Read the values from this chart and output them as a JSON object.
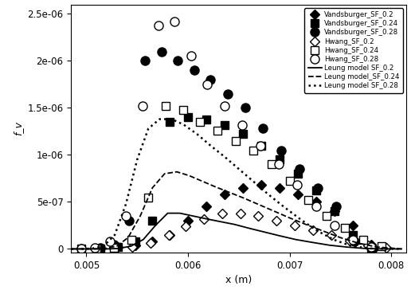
{
  "title": "",
  "xlabel": "x (m)",
  "ylabel": "f_v",
  "xlim": [
    0.00485,
    0.00815
  ],
  "ylim": [
    -4e-08,
    2.6e-06
  ],
  "yticks": [
    0,
    5e-07,
    1e-06,
    1.5e-06,
    2e-06,
    2.5e-06
  ],
  "xticks": [
    0.005,
    0.006,
    0.007,
    0.008
  ],
  "vands_02_x": [
    0.00514,
    0.00531,
    0.00548,
    0.00565,
    0.00582,
    0.006,
    0.00618,
    0.00636,
    0.00654,
    0.00672,
    0.0069,
    0.00708,
    0.00726,
    0.00744,
    0.00762,
    0.0078
  ],
  "vands_02_y": [
    0.0,
    2e-08,
    4e-08,
    8e-08,
    1.5e-07,
    3e-07,
    4.5e-07,
    5.8e-07,
    6.5e-07,
    6.8e-07,
    6.5e-07,
    5.8e-07,
    5e-07,
    4e-07,
    2.5e-07,
    5e-08
  ],
  "vands_024_x": [
    0.00514,
    0.00531,
    0.00548,
    0.00565,
    0.00582,
    0.006,
    0.00618,
    0.00636,
    0.00654,
    0.00672,
    0.0069,
    0.00708,
    0.00726,
    0.00744,
    0.00762,
    0.0078
  ],
  "vands_024_y": [
    0.0,
    2e-08,
    8e-08,
    3e-07,
    1.35e-06,
    1.4e-06,
    1.38e-06,
    1.32e-06,
    1.22e-06,
    1.1e-06,
    9.5e-07,
    8e-07,
    6.2e-07,
    4e-07,
    1.5e-07,
    1e-08
  ],
  "vands_028_x": [
    0.00514,
    0.00527,
    0.00542,
    0.00558,
    0.00574,
    0.0059,
    0.00606,
    0.00622,
    0.00639,
    0.00656,
    0.00674,
    0.00692,
    0.0071,
    0.00728,
    0.00746,
    0.00764,
    0.00782
  ],
  "vands_028_y": [
    1e-08,
    5e-08,
    3e-07,
    2e-06,
    2.1e-06,
    2e-06,
    1.9e-06,
    1.8e-06,
    1.65e-06,
    1.5e-06,
    1.28e-06,
    1.05e-06,
    8.5e-07,
    6.5e-07,
    4.5e-07,
    8e-08,
    0.0
  ],
  "hwang_02_x": [
    0.00495,
    0.0051,
    0.00527,
    0.00545,
    0.00563,
    0.00581,
    0.00598,
    0.00616,
    0.00634,
    0.00652,
    0.00669,
    0.00687,
    0.00705,
    0.00723,
    0.00741,
    0.00759,
    0.00777,
    0.00795
  ],
  "hwang_02_y": [
    0.0,
    0.0,
    5e-09,
    2e-08,
    6e-08,
    1.5e-07,
    2.4e-07,
    3.2e-07,
    3.8e-07,
    3.8e-07,
    3.5e-07,
    3e-07,
    2.5e-07,
    2e-07,
    1.5e-07,
    9e-08,
    4e-08,
    1e-08
  ],
  "hwang_024_x": [
    0.00495,
    0.0051,
    0.00527,
    0.00544,
    0.00561,
    0.00578,
    0.00595,
    0.00612,
    0.00629,
    0.00647,
    0.00664,
    0.00682,
    0.007,
    0.00718,
    0.00736,
    0.00754,
    0.00772,
    0.0079
  ],
  "hwang_024_y": [
    0.0,
    0.0,
    1e-08,
    1e-07,
    5.5e-07,
    1.52e-06,
    1.48e-06,
    1.35e-06,
    1.26e-06,
    1.15e-06,
    1.05e-06,
    9e-07,
    7.2e-07,
    5.2e-07,
    3.5e-07,
    2.2e-07,
    1e-07,
    3e-08
  ],
  "hwang_028_x": [
    0.00495,
    0.00508,
    0.00523,
    0.00539,
    0.00555,
    0.00571,
    0.00587,
    0.00603,
    0.00619,
    0.00636,
    0.00653,
    0.00671,
    0.00689,
    0.00707,
    0.00726,
    0.00744,
    0.00762,
    0.0078
  ],
  "hwang_028_y": [
    0.0,
    1e-08,
    8e-08,
    3.5e-07,
    1.52e-06,
    2.38e-06,
    2.42e-06,
    2.05e-06,
    1.75e-06,
    1.52e-06,
    1.32e-06,
    1.1e-06,
    9e-07,
    6.8e-07,
    4.5e-07,
    2.5e-07,
    1e-07,
    2e-08
  ],
  "leung_02_x": [
    0.00485,
    0.00496,
    0.00508,
    0.0052,
    0.00532,
    0.00544,
    0.00556,
    0.00568,
    0.0058,
    0.00592,
    0.00605,
    0.00618,
    0.00632,
    0.00646,
    0.0066,
    0.00675,
    0.0069,
    0.00706,
    0.00722,
    0.00739,
    0.00756,
    0.00774,
    0.00792,
    0.0081
  ],
  "leung_02_y": [
    0.0,
    0.0,
    0.0,
    0.0,
    5e-09,
    3e-08,
    1e-07,
    2.5e-07,
    3.8e-07,
    3.8e-07,
    3.5e-07,
    3.2e-07,
    2.9e-07,
    2.6e-07,
    2.2e-07,
    1.8e-07,
    1.4e-07,
    1e-07,
    7e-08,
    4e-08,
    2e-08,
    5e-09,
    0.0,
    0.0
  ],
  "leung_024_x": [
    0.00485,
    0.00496,
    0.00507,
    0.00519,
    0.0053,
    0.00541,
    0.00553,
    0.00565,
    0.00577,
    0.00589,
    0.00601,
    0.00614,
    0.00627,
    0.00641,
    0.00655,
    0.0067,
    0.00685,
    0.007,
    0.00716,
    0.00733,
    0.0075,
    0.00768,
    0.00786,
    0.0081
  ],
  "leung_024_y": [
    0.0,
    0.0,
    0.0,
    5e-09,
    3e-08,
    1.2e-07,
    3.5e-07,
    6.5e-07,
    8e-07,
    8.2e-07,
    7.8e-07,
    7.2e-07,
    6.6e-07,
    6e-07,
    5.4e-07,
    4.7e-07,
    4e-07,
    3.3e-07,
    2.6e-07,
    1.9e-07,
    1.2e-07,
    6e-08,
    2e-08,
    0.0
  ],
  "leung_028_x": [
    0.00485,
    0.00495,
    0.00506,
    0.00517,
    0.00528,
    0.00539,
    0.0055,
    0.00561,
    0.00572,
    0.00584,
    0.00596,
    0.00609,
    0.00622,
    0.00636,
    0.0065,
    0.00664,
    0.00679,
    0.00694,
    0.0071,
    0.00726,
    0.00743,
    0.00761,
    0.00779,
    0.0081
  ],
  "leung_028_y": [
    0.0,
    0.0,
    5e-09,
    3e-08,
    1.5e-07,
    4.8e-07,
    9.5e-07,
    1.28e-06,
    1.38e-06,
    1.38e-06,
    1.32e-06,
    1.22e-06,
    1.1e-06,
    9.8e-07,
    8.5e-07,
    7.2e-07,
    5.8e-07,
    4.5e-07,
    3.2e-07,
    2e-07,
    1e-07,
    3e-08,
    5e-09,
    0.0
  ]
}
